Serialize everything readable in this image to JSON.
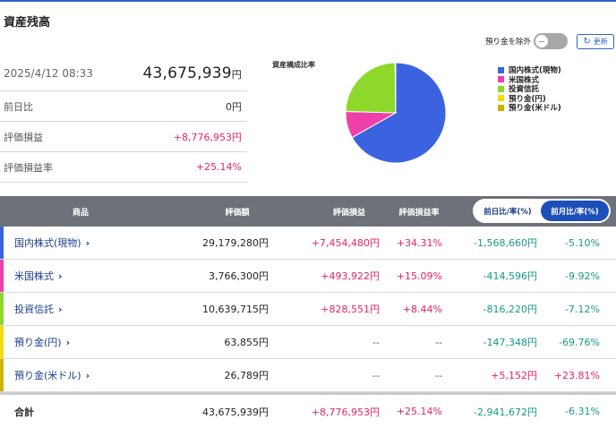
{
  "page_title": "資産残高",
  "controls": {
    "exclude_deposit_label": "預り金を除外",
    "refresh_icon": "refresh-icon",
    "refresh_label": "更新"
  },
  "summary": {
    "datetime": "2025/4/12 08:33",
    "total_value": "43,675,939",
    "yen": "円",
    "rows": [
      {
        "label": "前日比",
        "value": "0円"
      },
      {
        "label": "評価損益",
        "value": "+8,776,953円"
      },
      {
        "label": "評価損益率",
        "value": "+25.14%"
      }
    ]
  },
  "chart": {
    "title": "資産構成比率",
    "legend": [
      {
        "label": "国内株式(現物)",
        "color": "#3b63e0"
      },
      {
        "label": "米国株式",
        "color": "#ef3fa9"
      },
      {
        "label": "投資信託",
        "color": "#8ed82b"
      },
      {
        "label": "預り金(円)",
        "color": "#f1dc10"
      },
      {
        "label": "預り金(米ドル)",
        "color": "#ccb400"
      }
    ]
  },
  "chart_data": {
    "type": "pie",
    "title": "資産構成比率",
    "categories": [
      "国内株式(現物)",
      "米国株式",
      "投資信託",
      "預り金(円)",
      "預り金(米ドル)"
    ],
    "values": [
      29179280,
      3766300,
      10639715,
      63855,
      26789
    ],
    "colors": [
      "#3b63e0",
      "#ef3fa9",
      "#8ed82b",
      "#f1dc10",
      "#ccb400"
    ],
    "legend": "right"
  },
  "table": {
    "headers": {
      "product": "商品",
      "valuation": "評価額",
      "pl": "評価損益",
      "pl_rate": "評価損益率"
    },
    "toggle": {
      "day": "前日比/率(%)",
      "month": "前月比/率(%)"
    },
    "rows": [
      {
        "name": "国内株式(現物)",
        "valuation": "29,179,280円",
        "pl": "+7,454,480円",
        "pl_rate": "+34.31%",
        "change": "-1,568,660円",
        "change_rate": "-5.10%"
      },
      {
        "name": "米国株式",
        "valuation": "3,766,300円",
        "pl": "+493,922円",
        "pl_rate": "+15.09%",
        "change": "-414,596円",
        "change_rate": "-9.92%"
      },
      {
        "name": "投資信託",
        "valuation": "10,639,715円",
        "pl": "+828,551円",
        "pl_rate": "+8.44%",
        "change": "-816,220円",
        "change_rate": "-7.12%"
      },
      {
        "name": "預り金(円)",
        "valuation": "63,855円",
        "pl": "--",
        "pl_rate": "--",
        "change": "-147,348円",
        "change_rate": "-69.76%"
      },
      {
        "name": "預り金(米ドル)",
        "valuation": "26,789円",
        "pl": "--",
        "pl_rate": "--",
        "change": "+5,152円",
        "change_rate": "+23.81%"
      }
    ],
    "total": {
      "name": "合計",
      "valuation": "43,675,939円",
      "pl": "+8,776,953円",
      "pl_rate": "+25.14%",
      "change": "-2,941,672円",
      "change_rate": "-6.31%"
    }
  }
}
